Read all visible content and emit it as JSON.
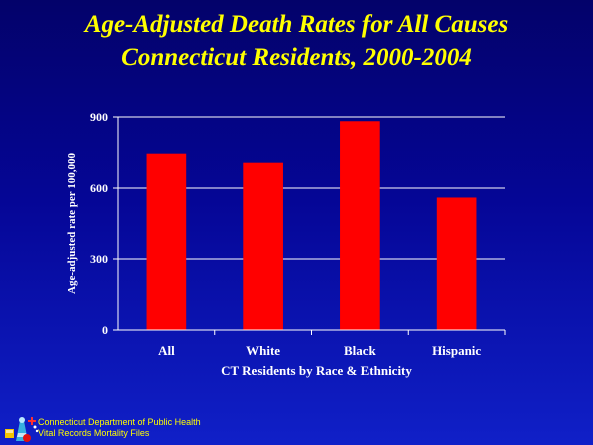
{
  "slide": {
    "title_line1": "Age-Adjusted Death Rates for All Causes",
    "title_line2": "Connecticut Residents, 2000-2004"
  },
  "footer": {
    "line1": "Connecticut Department of Public Health",
    "line2": "Vital Records Mortality Files"
  },
  "colors": {
    "bar": "#ff0000",
    "text": "#ffffff",
    "title": "#ffff00",
    "gridline": "#ffffff"
  },
  "chart_data": {
    "type": "bar",
    "categories": [
      "All",
      "White",
      "Black",
      "Hispanic"
    ],
    "values": [
      745,
      707,
      882,
      560
    ],
    "xlabel": "CT Residents by Race & Ethnicity",
    "ylabel": "Age-adjusted rate per 100,000",
    "ylim": [
      0,
      900
    ],
    "yticks": [
      "0",
      "300",
      "600",
      "900"
    ],
    "ytick_values": [
      0,
      300,
      600,
      900
    ],
    "grid": true
  }
}
